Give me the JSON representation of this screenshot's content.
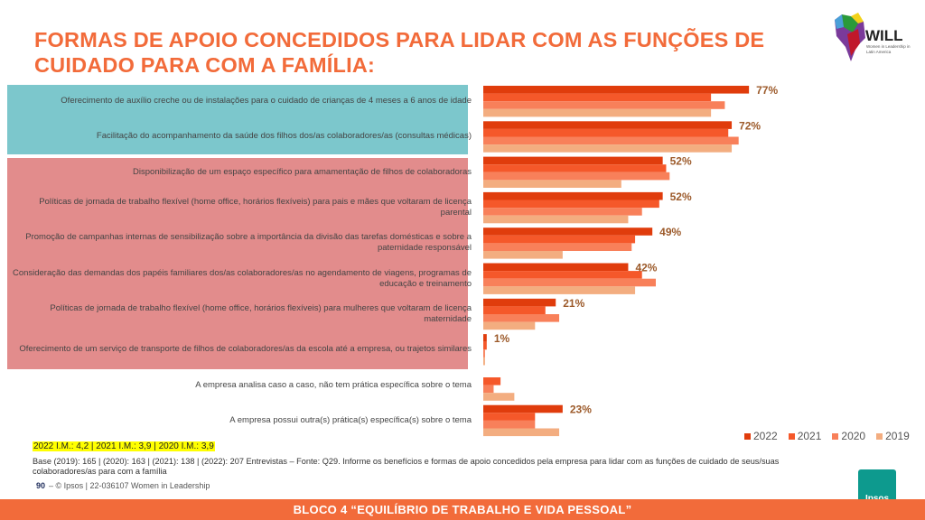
{
  "header": {
    "title": "FORMAS DE APOIO CONCEDIDOS PARA LIDAR COM AS FUNÇÕES DE CUIDADO PARA COM A FAMÍLIA:",
    "logo_text": "WILL",
    "logo_sub": "Women in Leadership in Latin America"
  },
  "chart_data": {
    "type": "bar",
    "orientation": "horizontal",
    "title": "",
    "xlabel": "",
    "ylabel": "",
    "xlim": [
      0,
      100
    ],
    "grid": false,
    "legend_position": "bottom-right",
    "categories": [
      "Oferecimento de auxílio creche ou de instalações para o cuidado de crianças de 4 meses a 6 anos de idade",
      "Facilitação do acompanhamento da saúde dos filhos dos/as colaboradores/as (consultas médicas)",
      "Disponibilização de um espaço específico para amamentação de filhos de colaboradoras",
      "Políticas de jornada de trabalho flexível (home office, horários flexíveis) para pais e mães que voltaram de licença parental",
      "Promoção de campanhas internas de sensibilização sobre a importância da divisão das tarefas domésticas e sobre a paternidade responsável",
      "Consideração das demandas dos papéis familiares dos/as colaboradores/as no agendamento de viagens, programas de educação e treinamento",
      "Políticas de jornada de trabalho flexível (home office, horários flexíveis) para mulheres que voltaram de licença maternidade",
      "Oferecimento de um serviço de transporte de filhos de colaboradores/as da escola até a empresa, ou trajetos similares",
      "A empresa analisa caso a caso, não tem prática específica sobre o tema",
      "A empresa possui outra(s) prática(s) específica(s) sobre o tema"
    ],
    "series": [
      {
        "name": "2022",
        "color": "#e03c0c",
        "values": [
          77,
          72,
          52,
          52,
          49,
          42,
          21,
          1,
          0,
          23
        ]
      },
      {
        "name": "2021",
        "color": "#f5582a",
        "values": [
          66,
          71,
          53,
          51,
          44,
          46,
          18,
          1,
          5,
          15
        ]
      },
      {
        "name": "2020",
        "color": "#f8805a",
        "values": [
          70,
          74,
          54,
          46,
          43,
          50,
          22,
          0.5,
          3,
          15
        ]
      },
      {
        "name": "2019",
        "color": "#f3ad80",
        "values": [
          66,
          72,
          40,
          42,
          23,
          44,
          15,
          0.5,
          9,
          22
        ]
      }
    ],
    "data_labels": [
      "77%",
      "72%",
      "52%",
      "52%",
      "49%",
      "42%",
      "21%",
      "1%",
      "",
      "23%"
    ],
    "label_color": "#9c5a2a"
  },
  "footer": {
    "im": "2022 I.M.: 4,2  | 2021 I.M.: 3,9  | 2020 I.M.: 3,9",
    "base": "Base (2019): 165 | (2020): 163  | (2021): 138  | (2022): 207 Entrevistas – Fonte: Q29. Informe os benefícios e formas de apoio concedidos pela empresa para lidar com as funções de cuidado de seus/suas colaboradores/as para com a família",
    "page": "90",
    "copyright": "– © Ipsos | 22-036107 Women in Leadership",
    "ipsos": "Ipsos",
    "bloco": "BLOCO 4 “EQUILÍBRIO DE TRABALHO E VIDA PESSOAL”"
  }
}
